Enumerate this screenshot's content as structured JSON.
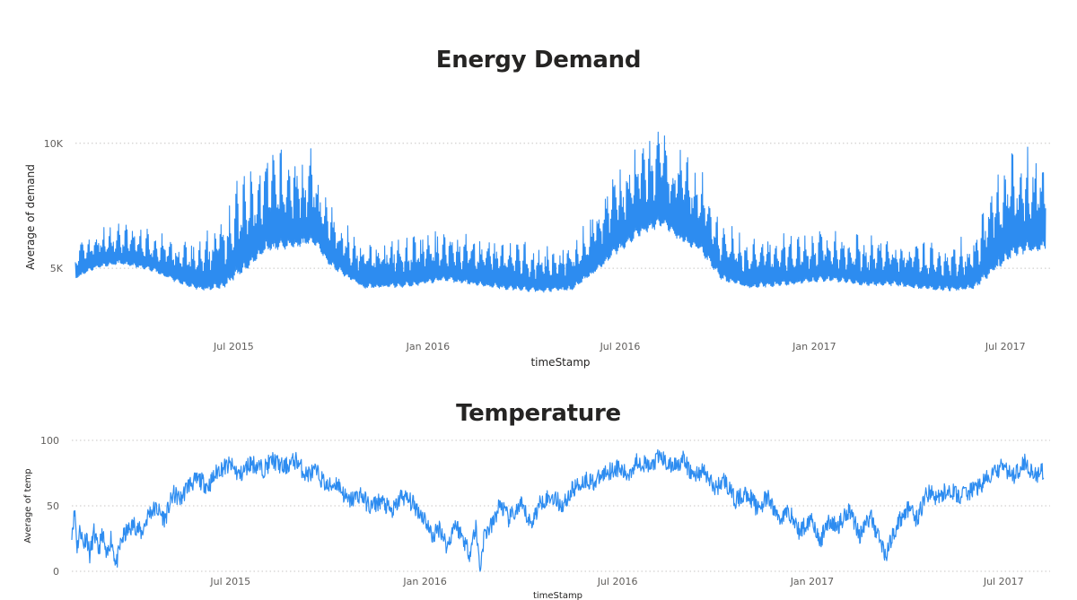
{
  "chart_data": [
    {
      "type": "line",
      "title": "Energy Demand",
      "xlabel": "timeStamp",
      "ylabel": "Average of demand",
      "x_range": [
        "2015-02-01",
        "2017-08-08"
      ],
      "ylim": [
        2600,
        11500
      ],
      "y_ticks": [
        {
          "value": 5000,
          "label": "5K"
        },
        {
          "value": 10000,
          "label": "10K"
        }
      ],
      "x_ticks": [
        {
          "date": "2015-07-01",
          "label": "Jul 2015"
        },
        {
          "date": "2016-01-01",
          "label": "Jan 2016"
        },
        {
          "date": "2016-07-01",
          "label": "Jul 2016"
        },
        {
          "date": "2017-01-01",
          "label": "Jan 2017"
        },
        {
          "date": "2017-07-01",
          "label": "Jul 2017"
        }
      ],
      "color": "#2d8cf0",
      "gridlines": true,
      "series": [
        {
          "name": "Average of demand",
          "profile": {
            "dates": [
              "2015-02-01",
              "2015-02-20",
              "2015-03-15",
              "2015-04-15",
              "2015-05-10",
              "2015-06-01",
              "2015-06-20",
              "2015-07-10",
              "2015-08-01",
              "2015-08-25",
              "2015-09-15",
              "2015-10-01",
              "2015-11-01",
              "2015-12-15",
              "2016-01-15",
              "2016-02-15",
              "2016-03-15",
              "2016-04-15",
              "2016-05-15",
              "2016-06-05",
              "2016-06-25",
              "2016-07-20",
              "2016-08-10",
              "2016-08-25",
              "2016-09-15",
              "2016-10-05",
              "2016-11-01",
              "2016-12-15",
              "2017-01-15",
              "2017-02-15",
              "2017-03-15",
              "2017-04-15",
              "2017-05-15",
              "2017-06-01",
              "2017-06-20",
              "2017-07-10",
              "2017-08-08"
            ],
            "base": [
              5200,
              5600,
              5800,
              5500,
              5000,
              4700,
              4700,
              5300,
              6200,
              6300,
              6500,
              5600,
              4800,
              4850,
              5100,
              4900,
              4750,
              4650,
              4700,
              5300,
              6000,
              6800,
              7200,
              6600,
              6200,
              5100,
              4800,
              4950,
              5100,
              4900,
              4900,
              4750,
              4700,
              4750,
              5300,
              6000,
              6200
            ],
            "amplitude": [
              1600,
              1800,
              1800,
              1900,
              1900,
              2200,
              3800,
              4400,
              4400,
              4400,
              4100,
              2800,
              2200,
              2300,
              2300,
              2300,
              2200,
              2100,
              2200,
              2900,
              3900,
              4400,
              4400,
              4200,
              3900,
              2600,
              2200,
              2300,
              2300,
              2300,
              2200,
              2100,
              2200,
              2600,
              4600,
              4800,
              4600
            ]
          }
        }
      ]
    },
    {
      "type": "line",
      "title": "Temperature",
      "xlabel": "timeStamp",
      "ylabel": "Average of temp",
      "x_range": [
        "2015-02-01",
        "2017-08-08"
      ],
      "ylim": [
        0,
        100
      ],
      "y_ticks": [
        {
          "value": 0,
          "label": "0"
        },
        {
          "value": 50,
          "label": "50"
        },
        {
          "value": 100,
          "label": "100"
        }
      ],
      "x_ticks": [
        {
          "date": "2015-07-01",
          "label": "Jul 2015"
        },
        {
          "date": "2016-01-01",
          "label": "Jan 2016"
        },
        {
          "date": "2016-07-01",
          "label": "Jul 2016"
        },
        {
          "date": "2017-01-01",
          "label": "Jan 2017"
        },
        {
          "date": "2017-07-01",
          "label": "Jul 2017"
        }
      ],
      "color": "#2d8cf0",
      "gridlines": true,
      "series": [
        {
          "name": "Average of temp",
          "points": [
            [
              "2015-02-01",
              31
            ],
            [
              "2015-02-04",
              46
            ],
            [
              "2015-02-06",
              18
            ],
            [
              "2015-02-09",
              33
            ],
            [
              "2015-02-12",
              20
            ],
            [
              "2015-02-15",
              28
            ],
            [
              "2015-02-18",
              12
            ],
            [
              "2015-02-22",
              30
            ],
            [
              "2015-02-26",
              15
            ],
            [
              "2015-03-02",
              29
            ],
            [
              "2015-03-06",
              9
            ],
            [
              "2015-03-10",
              26
            ],
            [
              "2015-03-15",
              5
            ],
            [
              "2015-03-20",
              24
            ],
            [
              "2015-03-25",
              30
            ],
            [
              "2015-04-01",
              36
            ],
            [
              "2015-04-08",
              29
            ],
            [
              "2015-04-15",
              45
            ],
            [
              "2015-04-22",
              48
            ],
            [
              "2015-04-30",
              40
            ],
            [
              "2015-05-08",
              59
            ],
            [
              "2015-05-15",
              55
            ],
            [
              "2015-05-22",
              66
            ],
            [
              "2015-06-01",
              70
            ],
            [
              "2015-06-10",
              65
            ],
            [
              "2015-06-20",
              78
            ],
            [
              "2015-07-01",
              81
            ],
            [
              "2015-07-10",
              73
            ],
            [
              "2015-07-20",
              83
            ],
            [
              "2015-08-01",
              78
            ],
            [
              "2015-08-10",
              85
            ],
            [
              "2015-08-20",
              79
            ],
            [
              "2015-09-01",
              85
            ],
            [
              "2015-09-10",
              74
            ],
            [
              "2015-09-20",
              76
            ],
            [
              "2015-10-01",
              64
            ],
            [
              "2015-10-10",
              68
            ],
            [
              "2015-10-20",
              53
            ],
            [
              "2015-11-01",
              59
            ],
            [
              "2015-11-10",
              49
            ],
            [
              "2015-11-20",
              54
            ],
            [
              "2015-12-01",
              45
            ],
            [
              "2015-12-10",
              58
            ],
            [
              "2015-12-20",
              52
            ],
            [
              "2016-01-01",
              40
            ],
            [
              "2016-01-08",
              26
            ],
            [
              "2016-01-15",
              34
            ],
            [
              "2016-01-22",
              18
            ],
            [
              "2016-01-29",
              37
            ],
            [
              "2016-02-05",
              27
            ],
            [
              "2016-02-12",
              14
            ],
            [
              "2016-02-18",
              34
            ],
            [
              "2016-02-22",
              2
            ],
            [
              "2016-02-26",
              28
            ],
            [
              "2016-03-05",
              36
            ],
            [
              "2016-03-12",
              52
            ],
            [
              "2016-03-20",
              40
            ],
            [
              "2016-04-01",
              50
            ],
            [
              "2016-04-10",
              36
            ],
            [
              "2016-04-20",
              54
            ],
            [
              "2016-05-01",
              57
            ],
            [
              "2016-05-10",
              50
            ],
            [
              "2016-05-20",
              63
            ],
            [
              "2016-06-01",
              70
            ],
            [
              "2016-06-10",
              68
            ],
            [
              "2016-06-20",
              76
            ],
            [
              "2016-07-01",
              79
            ],
            [
              "2016-07-10",
              73
            ],
            [
              "2016-07-20",
              85
            ],
            [
              "2016-08-01",
              79
            ],
            [
              "2016-08-10",
              88
            ],
            [
              "2016-08-20",
              80
            ],
            [
              "2016-09-01",
              85
            ],
            [
              "2016-09-10",
              73
            ],
            [
              "2016-09-20",
              77
            ],
            [
              "2016-10-01",
              63
            ],
            [
              "2016-10-10",
              70
            ],
            [
              "2016-10-20",
              54
            ],
            [
              "2016-11-01",
              60
            ],
            [
              "2016-11-10",
              48
            ],
            [
              "2016-11-20",
              56
            ],
            [
              "2016-12-01",
              40
            ],
            [
              "2016-12-10",
              46
            ],
            [
              "2016-12-20",
              30
            ],
            [
              "2017-01-01",
              42
            ],
            [
              "2017-01-08",
              20
            ],
            [
              "2017-01-15",
              38
            ],
            [
              "2017-01-25",
              34
            ],
            [
              "2017-02-05",
              48
            ],
            [
              "2017-02-15",
              28
            ],
            [
              "2017-02-25",
              42
            ],
            [
              "2017-03-05",
              26
            ],
            [
              "2017-03-12",
              12
            ],
            [
              "2017-03-20",
              32
            ],
            [
              "2017-04-01",
              48
            ],
            [
              "2017-04-10",
              40
            ],
            [
              "2017-04-20",
              60
            ],
            [
              "2017-05-01",
              56
            ],
            [
              "2017-05-10",
              63
            ],
            [
              "2017-05-20",
              57
            ],
            [
              "2017-06-01",
              62
            ],
            [
              "2017-06-10",
              66
            ],
            [
              "2017-06-20",
              74
            ],
            [
              "2017-07-01",
              80
            ],
            [
              "2017-07-10",
              72
            ],
            [
              "2017-07-20",
              84
            ],
            [
              "2017-08-01",
              73
            ],
            [
              "2017-08-08",
              76
            ]
          ]
        }
      ]
    }
  ]
}
